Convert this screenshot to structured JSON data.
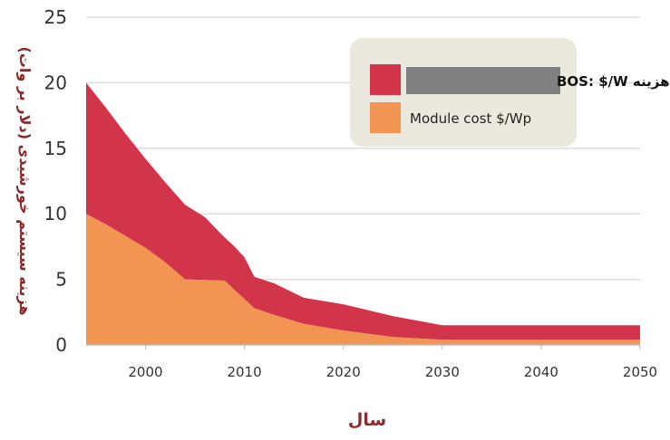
{
  "colors": {
    "bos": "#d2354a",
    "module": "#f29452",
    "grid": "#dedede",
    "legend_bg": "#ebe8dd",
    "legend_label_bg": "#808080",
    "axis_title": "#8b2a2a"
  },
  "chart_data": {
    "type": "area",
    "stacked": true,
    "xlabel": "سال",
    "ylabel": "هزینه سیستم خورشیدی (دلار بر وات)",
    "xlim": [
      1994,
      2050
    ],
    "ylim": [
      0,
      25
    ],
    "xticks": [
      "2000",
      "2010",
      "2020",
      "2030",
      "2040",
      "2050"
    ],
    "yticks": [
      "0",
      "5",
      "10",
      "15",
      "20",
      "25"
    ],
    "grid": true,
    "legend_position": "top-right",
    "series": [
      {
        "name": "Module cost $/Wp",
        "x": [
          1994,
          1996,
          1998,
          2000,
          2002,
          2004,
          2006,
          2008,
          2009,
          2010,
          2011,
          2013,
          2016,
          2020,
          2025,
          2030,
          2040,
          2050
        ],
        "values": [
          10.0,
          9.2,
          8.3,
          7.4,
          6.3,
          5.0,
          4.95,
          4.9,
          4.2,
          3.5,
          2.8,
          2.3,
          1.6,
          1.1,
          0.6,
          0.4,
          0.4,
          0.4
        ]
      },
      {
        "name": "هزینه BOS:  $/W",
        "x": [
          1994,
          1996,
          1998,
          2000,
          2002,
          2004,
          2006,
          2008,
          2009,
          2010,
          2011,
          2013,
          2016,
          2020,
          2025,
          2030,
          2040,
          2050
        ],
        "values": [
          10.0,
          8.9,
          7.8,
          6.8,
          6.1,
          5.7,
          4.8,
          3.3,
          3.3,
          3.2,
          2.4,
          2.4,
          2.0,
          2.0,
          1.6,
          1.1,
          1.1,
          1.1
        ]
      }
    ]
  }
}
